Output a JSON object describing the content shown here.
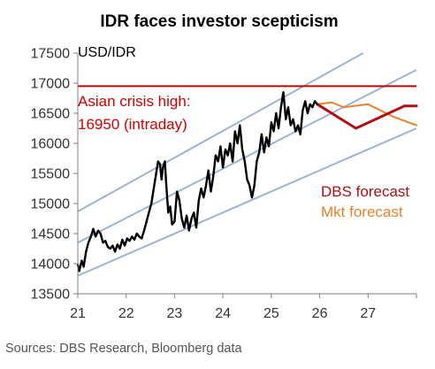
{
  "chart_data": {
    "type": "line",
    "title": "IDR faces investor scepticism",
    "unit_label": "USD/IDR",
    "source": "Sources: DBS Research, Bloomberg data",
    "xlim": [
      21,
      28
    ],
    "ylim": [
      13500,
      17500
    ],
    "x_ticks": [
      "21",
      "22",
      "23",
      "24",
      "25",
      "26",
      "27"
    ],
    "y_ticks": [
      "17500",
      "17000",
      "16500",
      "16000",
      "15500",
      "15000",
      "14500",
      "14000",
      "13500"
    ],
    "grid": false,
    "colors": {
      "history": "#000000",
      "dbs": "#b01010",
      "market": "#e8822d",
      "crisis": "#c00000",
      "trend": "#9db3d6"
    },
    "reference_line": {
      "value": 16950,
      "label_line1": "Asian crisis high:",
      "label_line2": "16950 (intraday)"
    },
    "series": [
      {
        "name": "USD/IDR",
        "points": [
          [
            21.0,
            13980
          ],
          [
            21.03,
            13880
          ],
          [
            21.08,
            14050
          ],
          [
            21.12,
            13950
          ],
          [
            21.17,
            14200
          ],
          [
            21.22,
            14350
          ],
          [
            21.27,
            14450
          ],
          [
            21.32,
            14580
          ],
          [
            21.37,
            14450
          ],
          [
            21.42,
            14550
          ],
          [
            21.47,
            14500
          ],
          [
            21.52,
            14350
          ],
          [
            21.57,
            14380
          ],
          [
            21.62,
            14280
          ],
          [
            21.67,
            14250
          ],
          [
            21.72,
            14300
          ],
          [
            21.77,
            14200
          ],
          [
            21.82,
            14320
          ],
          [
            21.87,
            14250
          ],
          [
            21.92,
            14400
          ],
          [
            21.97,
            14300
          ],
          [
            22.02,
            14420
          ],
          [
            22.07,
            14380
          ],
          [
            22.12,
            14450
          ],
          [
            22.17,
            14400
          ],
          [
            22.22,
            14500
          ],
          [
            22.27,
            14450
          ],
          [
            22.32,
            14420
          ],
          [
            22.37,
            14550
          ],
          [
            22.42,
            14700
          ],
          [
            22.47,
            14850
          ],
          [
            22.52,
            15000
          ],
          [
            22.57,
            15250
          ],
          [
            22.62,
            15500
          ],
          [
            22.66,
            15700
          ],
          [
            22.7,
            15650
          ],
          [
            22.73,
            15400
          ],
          [
            22.76,
            15600
          ],
          [
            22.8,
            15700
          ],
          [
            22.83,
            15300
          ],
          [
            22.87,
            14850
          ],
          [
            22.91,
            14950
          ],
          [
            22.95,
            14650
          ],
          [
            23.0,
            14700
          ],
          [
            23.05,
            15200
          ],
          [
            23.1,
            15050
          ],
          [
            23.15,
            14750
          ],
          [
            23.2,
            14600
          ],
          [
            23.25,
            14800
          ],
          [
            23.3,
            14550
          ],
          [
            23.35,
            14750
          ],
          [
            23.4,
            14850
          ],
          [
            23.45,
            14600
          ],
          [
            23.5,
            15050
          ],
          [
            23.55,
            15250
          ],
          [
            23.6,
            15100
          ],
          [
            23.65,
            15300
          ],
          [
            23.7,
            15550
          ],
          [
            23.75,
            15200
          ],
          [
            23.8,
            15450
          ],
          [
            23.85,
            15800
          ],
          [
            23.9,
            15700
          ],
          [
            23.95,
            15950
          ],
          [
            24.0,
            15600
          ],
          [
            24.05,
            15900
          ],
          [
            24.1,
            15800
          ],
          [
            24.15,
            16000
          ],
          [
            24.2,
            15700
          ],
          [
            24.25,
            16200
          ],
          [
            24.3,
            16000
          ],
          [
            24.35,
            16300
          ],
          [
            24.4,
            15900
          ],
          [
            24.45,
            15700
          ],
          [
            24.5,
            15400
          ],
          [
            24.55,
            15300
          ],
          [
            24.6,
            15100
          ],
          [
            24.65,
            15300
          ],
          [
            24.7,
            15700
          ],
          [
            24.75,
            15850
          ],
          [
            24.8,
            16150
          ],
          [
            24.85,
            15850
          ],
          [
            24.9,
            16100
          ],
          [
            24.95,
            15950
          ],
          [
            25.0,
            16350
          ],
          [
            25.05,
            16200
          ],
          [
            25.1,
            16500
          ],
          [
            25.15,
            16250
          ],
          [
            25.2,
            16600
          ],
          [
            25.25,
            16850
          ],
          [
            25.3,
            16400
          ],
          [
            25.35,
            16600
          ],
          [
            25.4,
            16300
          ],
          [
            25.45,
            16400
          ],
          [
            25.5,
            16200
          ],
          [
            25.55,
            16300
          ],
          [
            25.6,
            16150
          ],
          [
            25.65,
            16550
          ],
          [
            25.7,
            16700
          ],
          [
            25.75,
            16500
          ],
          [
            25.8,
            16650
          ],
          [
            25.85,
            16600
          ],
          [
            25.9,
            16700
          ],
          [
            25.95,
            16650
          ]
        ]
      },
      {
        "name": "DBS forecast",
        "points": [
          [
            25.95,
            16650
          ],
          [
            26.75,
            16250
          ],
          [
            27.75,
            16620
          ],
          [
            28.0,
            16620
          ]
        ]
      },
      {
        "name": "Mkt forecast",
        "points": [
          [
            25.95,
            16650
          ],
          [
            26.25,
            16680
          ],
          [
            26.5,
            16600
          ],
          [
            27.0,
            16650
          ],
          [
            27.5,
            16450
          ],
          [
            28.0,
            16300
          ]
        ]
      }
    ],
    "trend_lines": [
      [
        [
          21.0,
          14870
        ],
        [
          26.9,
          17500
        ]
      ],
      [
        [
          21.0,
          14350
        ],
        [
          28.0,
          17220
        ]
      ],
      [
        [
          21.0,
          13800
        ],
        [
          28.0,
          16250
        ]
      ]
    ]
  }
}
